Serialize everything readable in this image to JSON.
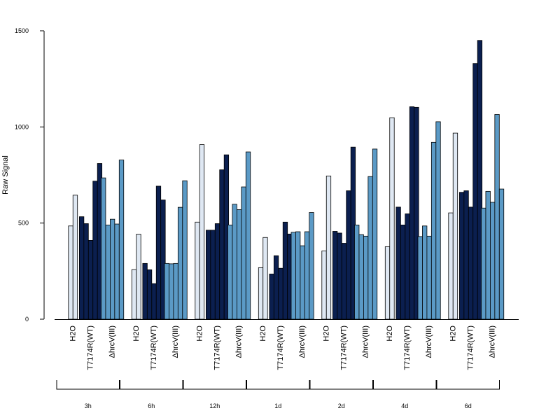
{
  "chart_data": {
    "type": "bar",
    "ylabel": "Raw Signal",
    "ylim": [
      0,
      1500
    ],
    "yticks": [
      0,
      500,
      1000,
      1500
    ],
    "treatments": [
      "H2O",
      "T7174R(WT)",
      "ΔhrcV(III)"
    ],
    "timepoints": [
      "3h",
      "6h",
      "12h",
      "1d",
      "2d",
      "4d",
      "6d"
    ],
    "colors": {
      "H2O": "#dfe8f3",
      "T7174R(WT)": "#0b1f4f",
      "ΔhrcV(III)": "#5b9ac6"
    },
    "groups": [
      {
        "time": "3h",
        "series": [
          {
            "name": "H2O",
            "values": [
              485,
              645
            ]
          },
          {
            "name": "T7174R(WT)",
            "values": [
              533,
              497,
              410,
              718,
              810
            ]
          },
          {
            "name": "ΔhrcV(III)",
            "values": [
              735,
              490,
              520,
              495,
              828
            ]
          }
        ]
      },
      {
        "time": "6h",
        "series": [
          {
            "name": "H2O",
            "values": [
              258,
              442
            ]
          },
          {
            "name": "T7174R(WT)",
            "values": [
              290,
              257,
              185,
              692,
              620
            ]
          },
          {
            "name": "ΔhrcV(III)",
            "values": [
              290,
              288,
              290,
              582,
              720
            ]
          }
        ]
      },
      {
        "time": "12h",
        "series": [
          {
            "name": "H2O",
            "values": [
              505,
              908
            ]
          },
          {
            "name": "T7174R(WT)",
            "values": [
              463,
              463,
              497,
              777,
              855
            ]
          },
          {
            "name": "ΔhrcV(III)",
            "values": [
              490,
              598,
              570,
              688,
              870
            ]
          }
        ]
      },
      {
        "time": "1d",
        "series": [
          {
            "name": "H2O",
            "values": [
              268,
              425
            ]
          },
          {
            "name": "T7174R(WT)",
            "values": [
              235,
              330,
              265,
              505,
              443
            ]
          },
          {
            "name": "ΔhrcV(III)",
            "values": [
              452,
              455,
              382,
              455,
              555
            ]
          }
        ]
      },
      {
        "time": "2d",
        "series": [
          {
            "name": "H2O",
            "values": [
              355,
              745
            ]
          },
          {
            "name": "T7174R(WT)",
            "values": [
              457,
              448,
              395,
              668,
              895
            ]
          },
          {
            "name": "ΔhrcV(III)",
            "values": [
              490,
              440,
              432,
              742,
              885
            ]
          }
        ]
      },
      {
        "time": "4d",
        "series": [
          {
            "name": "H2O",
            "values": [
              377,
              1048
            ]
          },
          {
            "name": "T7174R(WT)",
            "values": [
              583,
              490,
              548,
              1105,
              1102
            ]
          },
          {
            "name": "ΔhrcV(III)",
            "values": [
              430,
              485,
              432,
              920,
              1027
            ]
          }
        ]
      },
      {
        "time": "6d",
        "series": [
          {
            "name": "H2O",
            "values": [
              553,
              968
            ]
          },
          {
            "name": "T7174R(WT)",
            "values": [
              660,
              668,
              583,
              1330,
              1450
            ]
          },
          {
            "name": "ΔhrcV(III)",
            "values": [
              578,
              665,
              608,
              1065,
              677
            ]
          }
        ]
      }
    ]
  }
}
